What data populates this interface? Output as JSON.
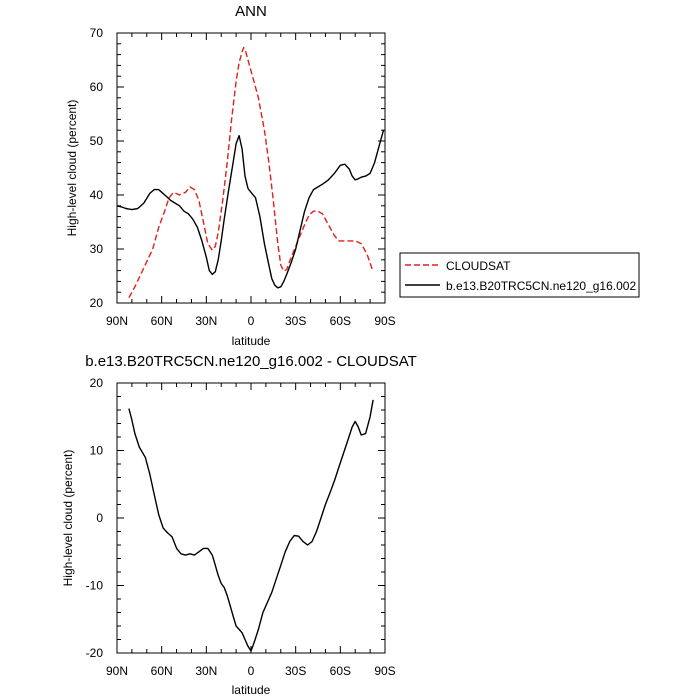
{
  "legend": {
    "items": [
      {
        "label": "CLOUDSAT",
        "color": "#e0201b",
        "dash": true
      },
      {
        "label": "b.e13.B20TRC5CN.ne120_g16.002",
        "color": "#000000",
        "dash": false
      }
    ]
  },
  "chart_data": [
    {
      "type": "line",
      "title": "ANN",
      "xlabel": "latitude",
      "ylabel": "High-level cloud (percent)",
      "xlim": [
        90,
        -90
      ],
      "ylim": [
        20,
        70
      ],
      "xticks": [
        90,
        60,
        30,
        0,
        -30,
        -60,
        -90
      ],
      "xtick_labels": [
        "90N",
        "60N",
        "30N",
        "0",
        "30S",
        "60S",
        "90S"
      ],
      "yticks": [
        20,
        30,
        40,
        50,
        60,
        70
      ],
      "ytick_labels": [
        "20",
        "30",
        "40",
        "50",
        "60",
        "70"
      ],
      "legend_position": "right",
      "series": [
        {
          "name": "CLOUDSAT",
          "color": "#e0201b",
          "dash": true,
          "x": [
            82,
            78,
            72,
            66,
            62,
            58,
            55,
            52,
            48,
            44,
            41,
            38,
            35,
            32,
            29,
            26,
            24,
            22,
            19,
            16,
            13,
            10,
            8,
            6,
            5,
            4,
            3,
            1,
            -2,
            -5,
            -9,
            -12,
            -15,
            -18,
            -20,
            -22,
            -24,
            -27,
            -30,
            -33,
            -36,
            -39,
            -42,
            -45,
            -48,
            -52,
            -56,
            -59,
            -62,
            -65,
            -70,
            -74,
            -78,
            -82
          ],
          "y": [
            21,
            23,
            26.5,
            30,
            34,
            37,
            39.5,
            40.5,
            40,
            40.5,
            41.5,
            41,
            39,
            35,
            31,
            29.8,
            30.5,
            33,
            39,
            46,
            54,
            61,
            64.5,
            66.5,
            67.3,
            67,
            66,
            64,
            61,
            58,
            52,
            46,
            39,
            31,
            27,
            25.9,
            26.2,
            28.5,
            30.5,
            32.5,
            34.5,
            36.3,
            37,
            37,
            36.5,
            34.5,
            32.5,
            31.5,
            31.5,
            31.5,
            31.5,
            31,
            29,
            25.8
          ]
        },
        {
          "name": "b.e13.B20TRC5CN.ne120_g16.002",
          "color": "#000000",
          "dash": false,
          "x": [
            90,
            87,
            84,
            80,
            76,
            72,
            68,
            65,
            62,
            60,
            57,
            54,
            51,
            48,
            45,
            42,
            39,
            36,
            33,
            30,
            28,
            26,
            24,
            22,
            20,
            18,
            15,
            12,
            10,
            8,
            6,
            4,
            2,
            0,
            -3,
            -6,
            -9,
            -12,
            -14,
            -16,
            -18,
            -20,
            -22,
            -24,
            -27,
            -30,
            -33,
            -36,
            -39,
            -42,
            -45,
            -48,
            -52,
            -56,
            -60,
            -63,
            -66,
            -68,
            -70,
            -72,
            -74,
            -77,
            -80,
            -83,
            -86,
            -89
          ],
          "y": [
            38,
            37.8,
            37.5,
            37.3,
            37.5,
            38.5,
            40.3,
            41,
            41,
            40.5,
            39.8,
            39,
            38.5,
            38,
            37,
            36.5,
            35.5,
            34,
            31.5,
            28.5,
            26,
            25.3,
            25.8,
            28,
            31.5,
            35.5,
            41,
            46,
            49.5,
            51,
            48.5,
            43.5,
            41.2,
            40.5,
            39.5,
            36,
            31,
            27,
            24.5,
            23.3,
            22.8,
            23,
            24,
            25.3,
            27.5,
            30,
            33.5,
            37,
            39.5,
            41,
            41.5,
            42,
            42.8,
            44,
            45.5,
            45.7,
            44.8,
            43.5,
            42.8,
            43,
            43.3,
            43.5,
            44,
            46,
            49,
            52
          ]
        }
      ]
    },
    {
      "type": "line",
      "title": "b.e13.B20TRC5CN.ne120_g16.002 - CLOUDSAT",
      "xlabel": "latitude",
      "ylabel": "High-level cloud (percent)",
      "xlim": [
        90,
        -90
      ],
      "ylim": [
        -20,
        20
      ],
      "xticks": [
        90,
        60,
        30,
        0,
        -30,
        -60,
        -90
      ],
      "xtick_labels": [
        "90N",
        "60N",
        "30N",
        "0",
        "30S",
        "60S",
        "90S"
      ],
      "yticks": [
        -20,
        -10,
        0,
        10,
        20
      ],
      "ytick_labels": [
        "-20",
        "-10",
        "0",
        "10",
        "20"
      ],
      "series": [
        {
          "color": "#000000",
          "dash": false,
          "x": [
            82,
            80,
            78,
            75,
            71,
            68,
            65,
            62,
            59,
            56,
            53,
            50,
            47,
            44,
            41,
            38,
            35,
            32,
            29,
            26,
            24,
            22,
            20,
            18,
            16,
            14,
            12,
            10,
            8,
            6,
            4,
            2,
            0,
            -2,
            -5,
            -8,
            -11,
            -14,
            -17,
            -20,
            -23,
            -26,
            -29,
            -32,
            -35,
            -38,
            -41,
            -44,
            -47,
            -50,
            -53,
            -56,
            -59,
            -62,
            -65,
            -68,
            -70,
            -72,
            -74,
            -77,
            -80,
            -82
          ],
          "y": [
            16.2,
            14.5,
            12.5,
            10.5,
            9,
            6.5,
            3.5,
            0.5,
            -1.5,
            -2.2,
            -2.8,
            -4.5,
            -5.3,
            -5.5,
            -5.3,
            -5.5,
            -5,
            -4.5,
            -4.5,
            -5.5,
            -7,
            -8.5,
            -9.7,
            -10.3,
            -11.5,
            -13,
            -14.5,
            -16,
            -16.5,
            -17,
            -18,
            -19,
            -19.7,
            -18.5,
            -16.5,
            -14,
            -12.5,
            -11,
            -9,
            -7,
            -5,
            -3.5,
            -2.6,
            -2.7,
            -3.5,
            -4,
            -3.5,
            -2,
            0,
            2,
            3.7,
            5.5,
            7.5,
            9.5,
            11.5,
            13.5,
            14.3,
            13.5,
            12.3,
            12.5,
            15,
            17.5
          ]
        }
      ]
    }
  ]
}
